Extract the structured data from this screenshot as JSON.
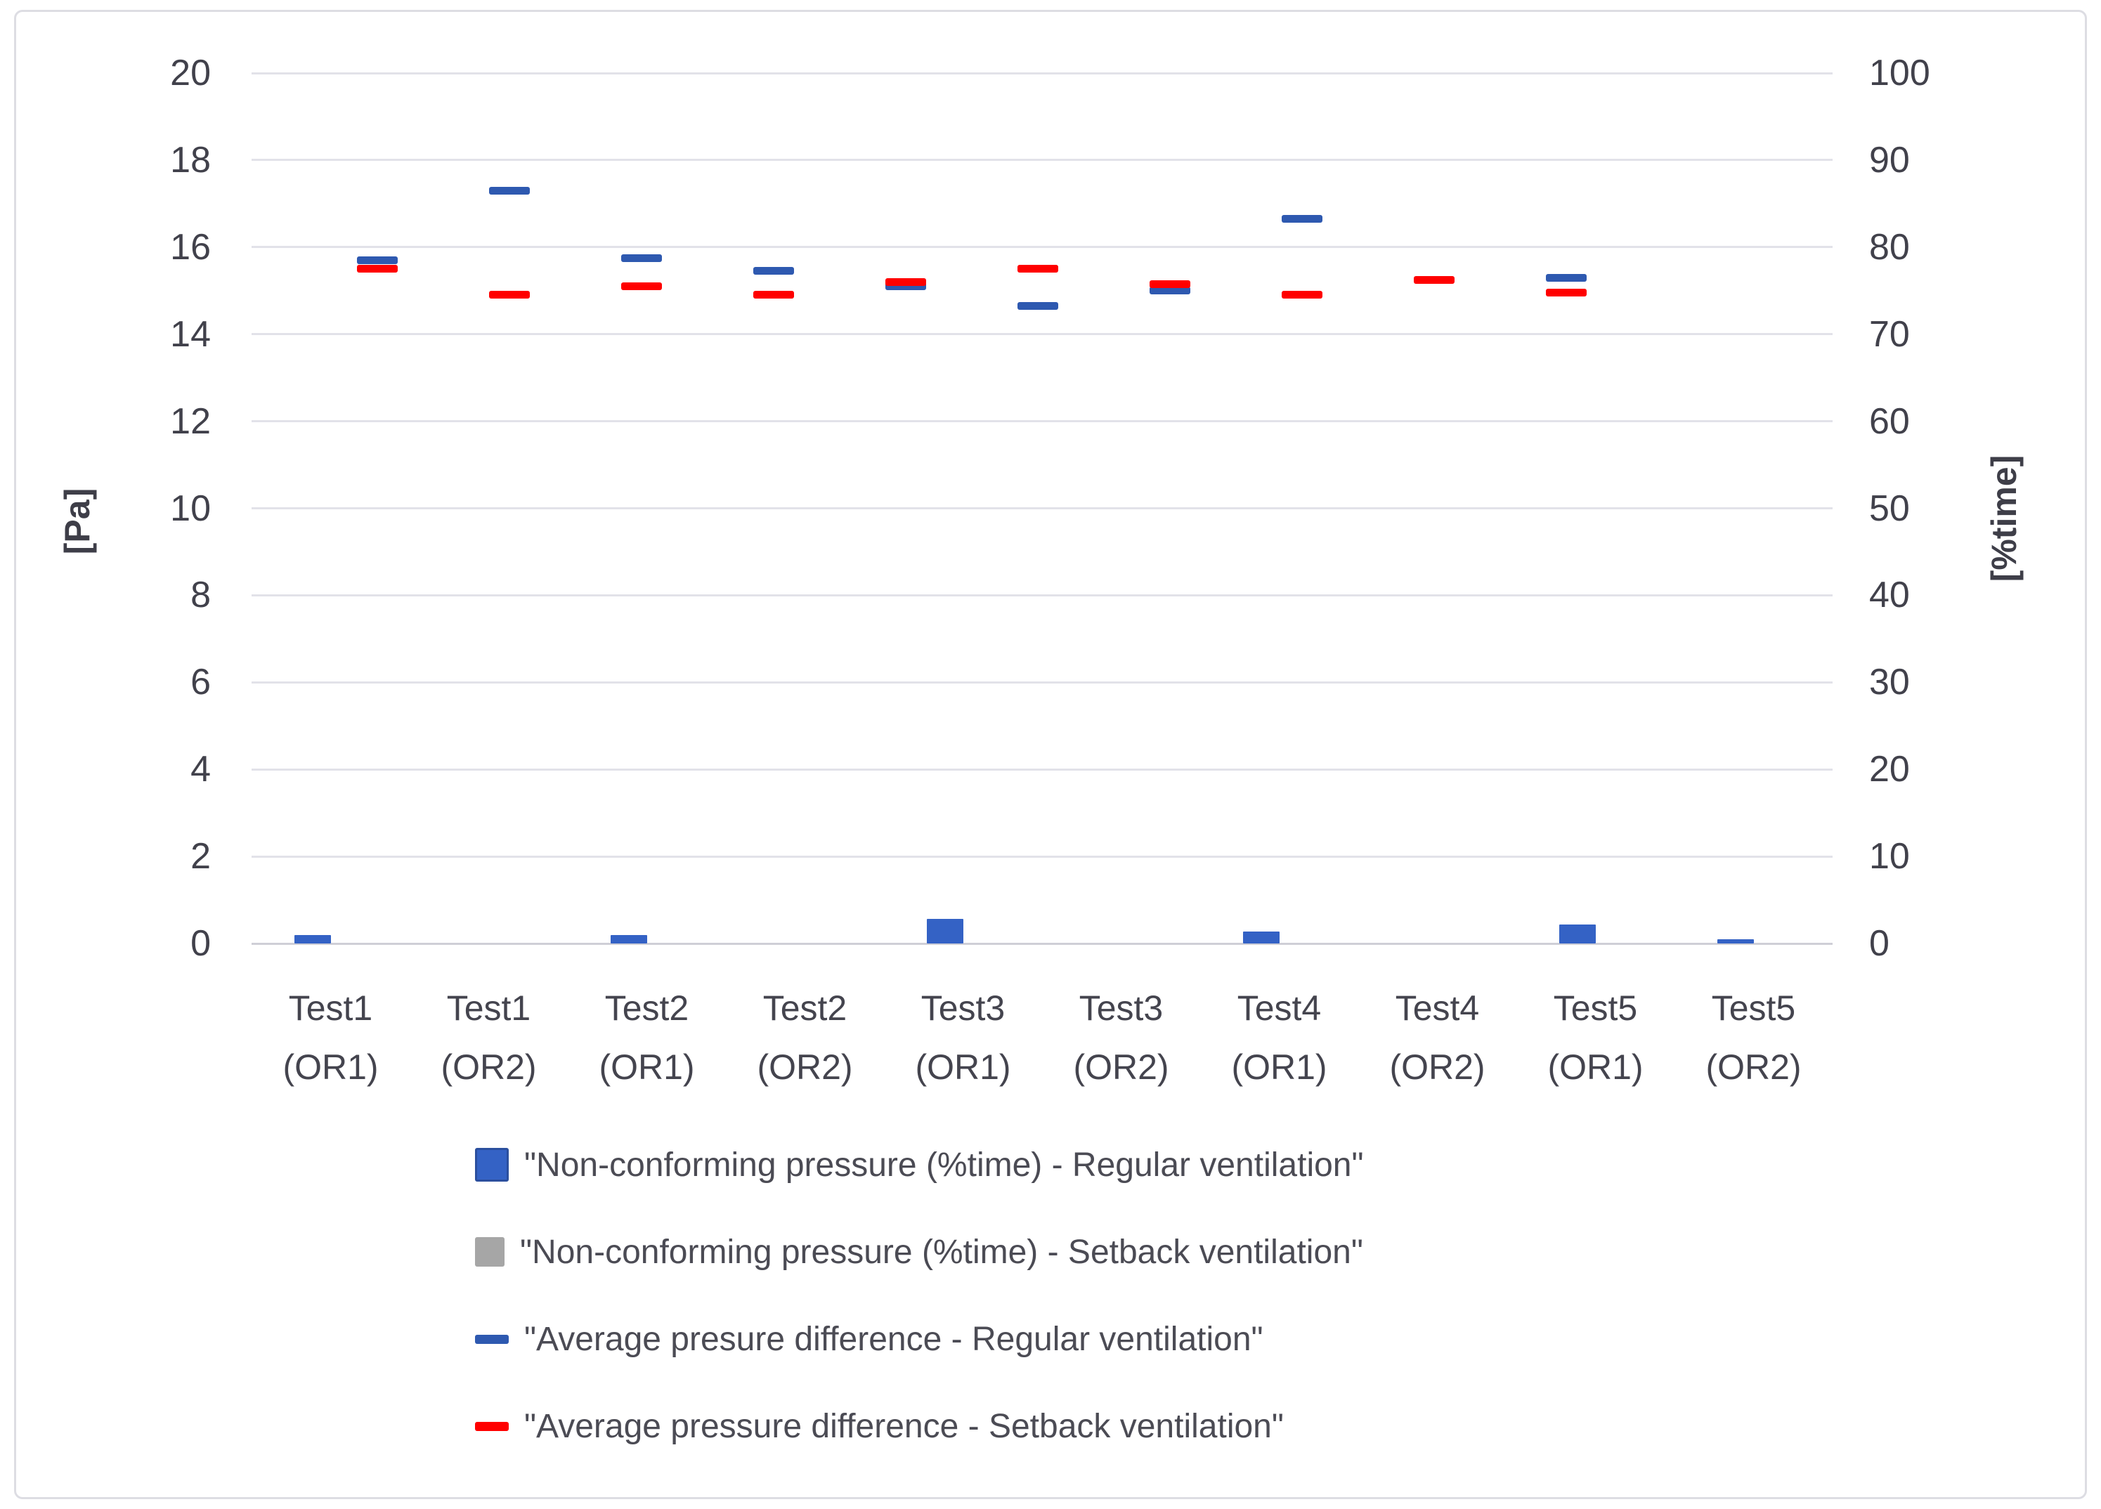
{
  "chart_data": {
    "type": "combo",
    "title": "",
    "xlabel": "",
    "left_axis": {
      "label": "[Pa]",
      "min": 0,
      "max": 20,
      "step": 2
    },
    "right_axis": {
      "label": "[%time]",
      "min": 0,
      "max": 100,
      "step": 10
    },
    "grid": "horizontal",
    "legend_position": "bottom-left",
    "categories": [
      "Test1 (OR1)",
      "Test1 (OR2)",
      "Test2 (OR1)",
      "Test2 (OR2)",
      "Test3 (OR1)",
      "Test3 (OR2)",
      "Test4 (OR1)",
      "Test4 (OR2)",
      "Test5 (OR1)",
      "Test5 (OR2)"
    ],
    "categories_lines": [
      [
        "Test1",
        "(OR1)"
      ],
      [
        "Test1",
        "(OR2)"
      ],
      [
        "Test2",
        "(OR1)"
      ],
      [
        "Test2",
        "(OR2)"
      ],
      [
        "Test3",
        "(OR1)"
      ],
      [
        "Test3",
        "(OR2)"
      ],
      [
        "Test4",
        "(OR1)"
      ],
      [
        "Test4",
        "(OR2)"
      ],
      [
        "Test5",
        "(OR1)"
      ],
      [
        "Test5",
        "(OR2)"
      ]
    ],
    "series": [
      {
        "name": "\"Non-conforming pressure (%time) - Regular ventilation\"",
        "type": "bar",
        "axis": "right",
        "color": "#3462C5",
        "values": [
          1.0,
          0,
          1.0,
          0,
          2.8,
          0,
          1.4,
          0,
          2.2,
          0.5
        ]
      },
      {
        "name": "\"Non-conforming pressure (%time) - Setback ventilation\"",
        "type": "bar",
        "axis": "right",
        "color": "#A6A6A6",
        "values": [
          0,
          0,
          0,
          0,
          0,
          0,
          0,
          0,
          0,
          0
        ]
      },
      {
        "name": "\"Average presure difference - Regular ventilation\"",
        "type": "dash",
        "axis": "left",
        "color": "#2E59B0",
        "values": [
          15.7,
          17.3,
          15.75,
          15.45,
          15.1,
          14.65,
          15.0,
          16.65,
          null,
          15.3
        ]
      },
      {
        "name": "\"Average pressure difference - Setback ventilation\"",
        "type": "dash",
        "axis": "left",
        "color": "#FF0000",
        "values": [
          15.5,
          14.9,
          15.1,
          14.9,
          15.2,
          15.5,
          15.15,
          14.9,
          15.25,
          14.95
        ]
      }
    ]
  }
}
